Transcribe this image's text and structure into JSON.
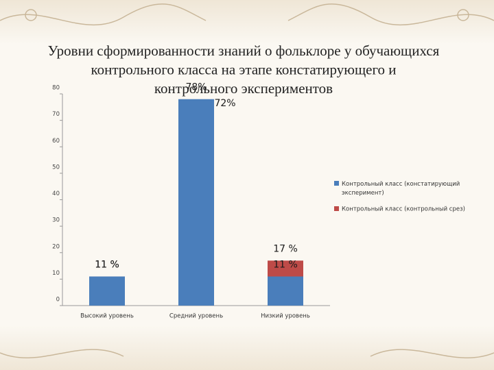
{
  "chart_data": {
    "type": "bar",
    "title_lines": [
      "Уровни сформированности знаний о фольклоре у обучающихся",
      "контрольного класса на этапе констатирующего и",
      "контрольного экспериментов"
    ],
    "categories": [
      "Высокий уровень",
      "Средний уровень",
      "Низкий уровень"
    ],
    "series": [
      {
        "name": "Контрольный класс (констатирующий эксперимент)",
        "color": "#4a7ebb",
        "values": [
          11,
          78,
          11
        ],
        "value_labels": [
          "11 %",
          "78%",
          "11 %"
        ]
      },
      {
        "name": "Контрольный класс (контрольный срез)",
        "color": "#be4b48",
        "values": [
          11,
          72,
          17
        ],
        "value_labels": [
          "11 %",
          "72%",
          "17 %"
        ]
      }
    ],
    "ylim": [
      0,
      80
    ],
    "yticks": [
      0,
      10,
      20,
      30,
      40,
      50,
      60,
      70,
      80
    ],
    "grid": false,
    "legend": "right"
  }
}
